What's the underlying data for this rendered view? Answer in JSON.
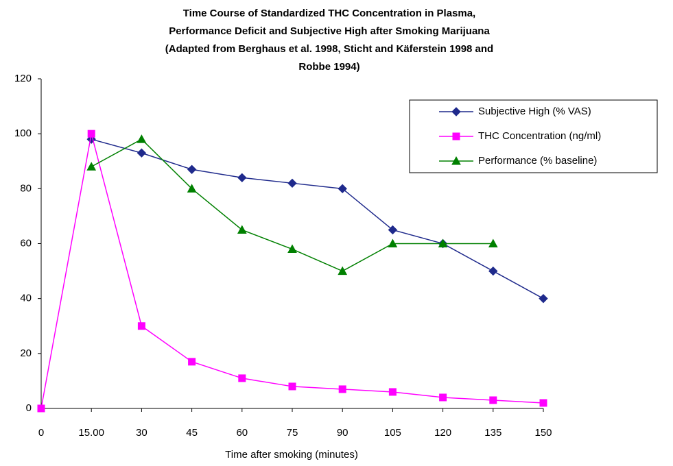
{
  "chart_data": {
    "type": "line",
    "title": [
      "Time Course of Standardized THC Concentration in Plasma,",
      "Performance Deficit and Subjective High after Smoking Marijuana",
      "(Adapted from Berghaus et al. 1998, Sticht and Käferstein 1998 and",
      "Robbe 1994)"
    ],
    "x_label": "Time after smoking (minutes)",
    "categories": [
      "0",
      "15.00",
      "30",
      "45",
      "60",
      "75",
      "90",
      "105",
      "120",
      "135",
      "150"
    ],
    "series": [
      {
        "name": "Subjective High (% VAS)",
        "color": "#1f2a8c",
        "marker": "diamond",
        "values": [
          null,
          98,
          93,
          87,
          84,
          82,
          80,
          65,
          60,
          50,
          40
        ]
      },
      {
        "name": "THC Concentration (ng/ml)",
        "color": "#ff00ff",
        "marker": "square",
        "values": [
          0,
          100,
          30,
          17,
          11,
          8,
          7,
          6,
          4,
          3,
          2
        ]
      },
      {
        "name": "Performance (% baseline)",
        "color": "#008000",
        "marker": "triangle",
        "values": [
          null,
          88,
          98,
          80,
          65,
          58,
          50,
          60,
          60,
          60,
          null
        ]
      }
    ],
    "ylim": [
      0,
      120
    ],
    "yticks": [
      0,
      20,
      40,
      60,
      80,
      100,
      120
    ],
    "grid": false,
    "legend": "upper right"
  }
}
